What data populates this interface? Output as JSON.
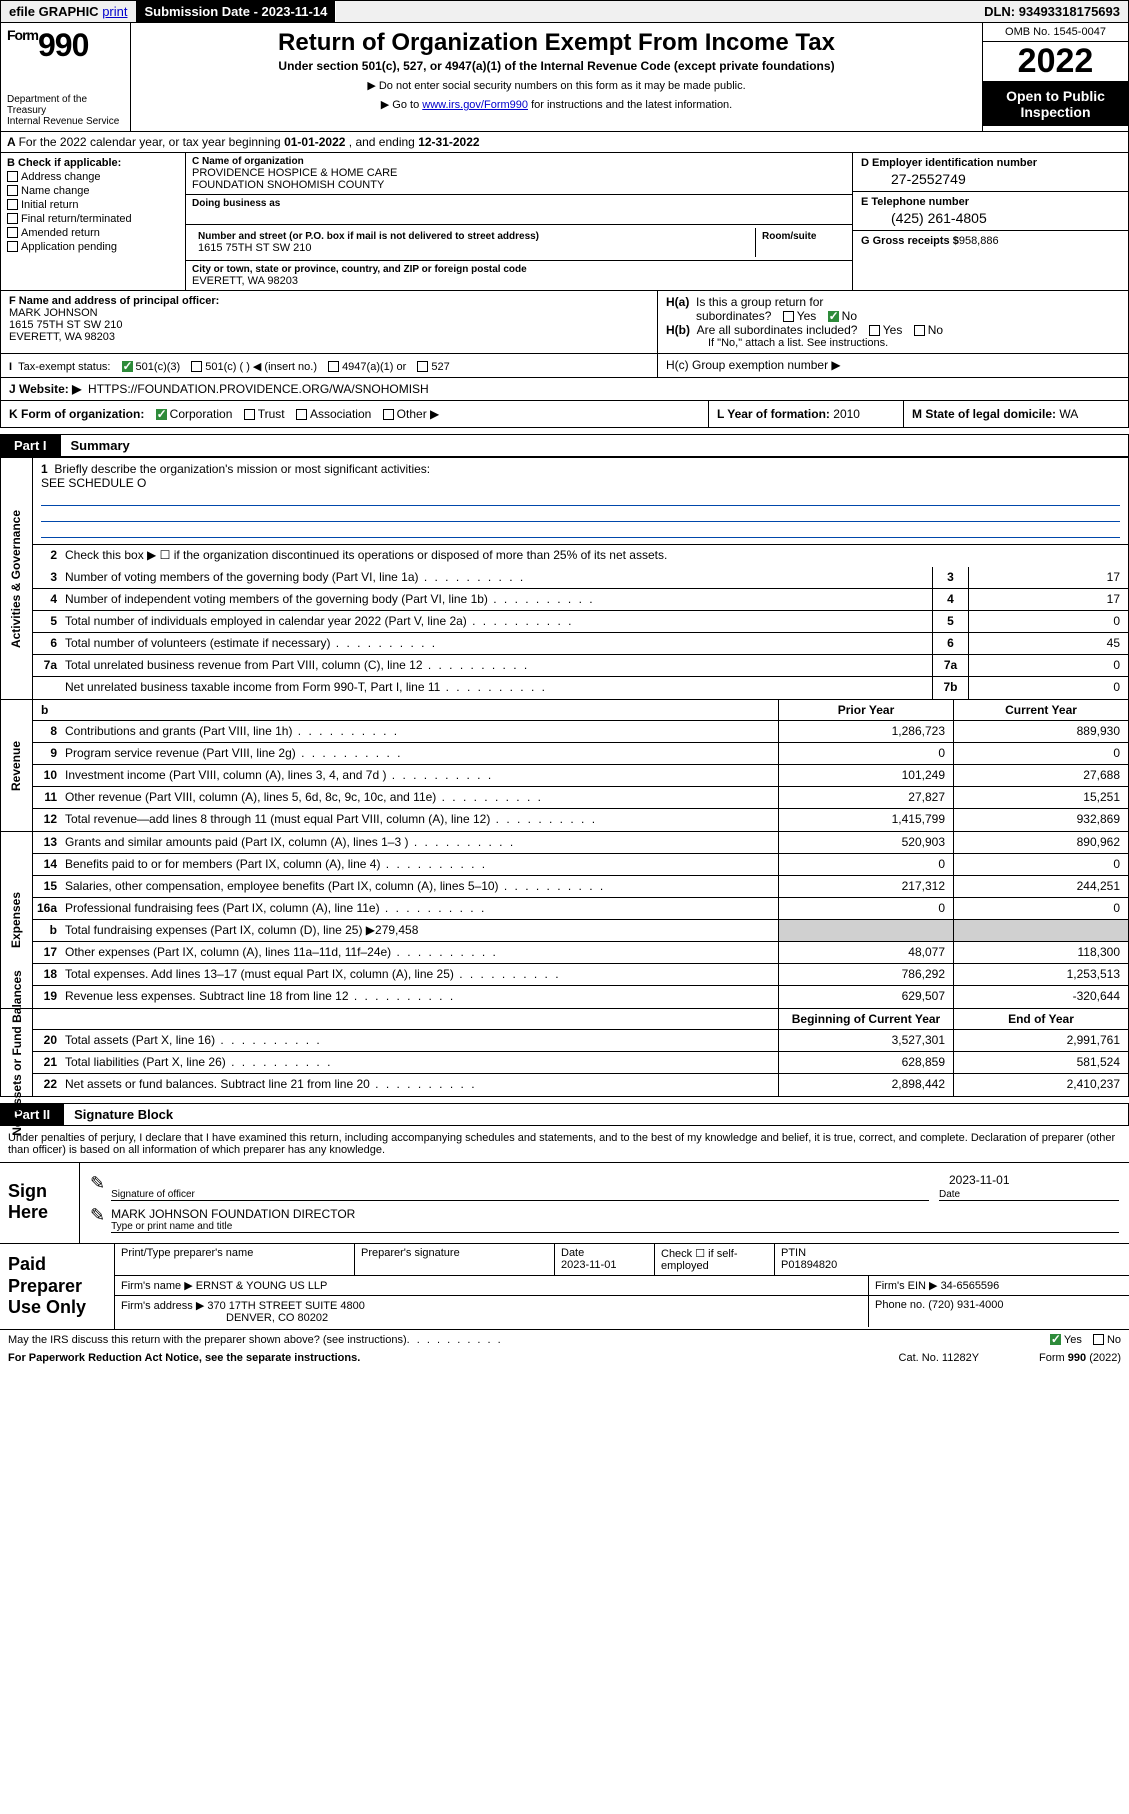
{
  "topbar": {
    "efile": "efile GRAPHIC",
    "print": "print",
    "submission_label": "Submission Date -",
    "submission_date": "2023-11-14",
    "dln_label": "DLN:",
    "dln": "93493318175693"
  },
  "header": {
    "form_label": "Form",
    "form_num": "990",
    "title": "Return of Organization Exempt From Income Tax",
    "subtitle": "Under section 501(c), 527, or 4947(a)(1) of the Internal Revenue Code (except private foundations)",
    "note1": "▶ Do not enter social security numbers on this form as it may be made public.",
    "note2_pre": "▶ Go to ",
    "note2_link": "www.irs.gov/Form990",
    "note2_post": " for instructions and the latest information.",
    "dept": "Department of the Treasury",
    "irs": "Internal Revenue Service",
    "omb": "OMB No. 1545-0047",
    "year": "2022",
    "open": "Open to Public Inspection"
  },
  "period": {
    "text_a": "For the 2022 calendar year, or tax year beginning ",
    "begin": "01-01-2022",
    "mid": " , and ending ",
    "end": "12-31-2022"
  },
  "boxB": {
    "title": "B Check if applicable:",
    "items": [
      "Address change",
      "Name change",
      "Initial return",
      "Final return/terminated",
      "Amended return",
      "Application pending"
    ]
  },
  "boxC": {
    "name_lbl": "C Name of organization",
    "name1": "PROVIDENCE HOSPICE & HOME CARE",
    "name2": "FOUNDATION SNOHOMISH COUNTY",
    "dba_lbl": "Doing business as",
    "addr_lbl": "Number and street (or P.O. box if mail is not delivered to street address)",
    "room_lbl": "Room/suite",
    "addr": "1615 75TH ST SW 210",
    "city_lbl": "City or town, state or province, country, and ZIP or foreign postal code",
    "city": "EVERETT, WA  98203"
  },
  "boxDE": {
    "d_lbl": "D Employer identification number",
    "ein": "27-2552749",
    "e_lbl": "E Telephone number",
    "phone": "(425) 261-4805",
    "g_lbl": "G Gross receipts $",
    "gross": "958,886"
  },
  "boxF": {
    "lbl": "F Name and address of principal officer:",
    "name": "MARK JOHNSON",
    "addr1": "1615 75TH ST SW 210",
    "addr2": "EVERETT, WA  98203"
  },
  "boxH": {
    "ha": "H(a)  Is this a group return for subordinates?",
    "hb": "H(b)  Are all subordinates included?",
    "hb_note": "If \"No,\" attach a list. See instructions.",
    "hc": "H(c)  Group exemption number ▶"
  },
  "boxI": {
    "lbl": "I  Tax-exempt status:",
    "o1": "501(c)(3)",
    "o2": "501(c) (  ) ◀ (insert no.)",
    "o3": "4947(a)(1) or",
    "o4": "527"
  },
  "boxJ": {
    "lbl": "J  Website: ▶",
    "val": "HTTPS://FOUNDATION.PROVIDENCE.ORG/WA/SNOHOMISH"
  },
  "boxK": {
    "lbl": "K Form of organization:",
    "o1": "Corporation",
    "o2": "Trust",
    "o3": "Association",
    "o4": "Other ▶"
  },
  "boxL": {
    "lbl": "L Year of formation:",
    "val": "2010"
  },
  "boxM": {
    "lbl": "M State of legal domicile:",
    "val": "WA"
  },
  "parts": {
    "p1_num": "Part I",
    "p1_title": "Summary",
    "p2_num": "Part II",
    "p2_title": "Signature Block"
  },
  "sections": {
    "s1": "Activities & Governance",
    "s2": "Revenue",
    "s3": "Expenses",
    "s4": "Net Assets or Fund Balances"
  },
  "q1": {
    "num": "1",
    "text": "Briefly describe the organization's mission or most significant activities:",
    "ans": "SEE SCHEDULE O"
  },
  "q2": {
    "num": "2",
    "text": "Check this box ▶ ☐  if the organization discontinued its operations or disposed of more than 25% of its net assets."
  },
  "rows_ag": [
    {
      "n": "3",
      "t": "Number of voting members of the governing body (Part VI, line 1a)",
      "b": "3",
      "v": "17"
    },
    {
      "n": "4",
      "t": "Number of independent voting members of the governing body (Part VI, line 1b)",
      "b": "4",
      "v": "17"
    },
    {
      "n": "5",
      "t": "Total number of individuals employed in calendar year 2022 (Part V, line 2a)",
      "b": "5",
      "v": "0"
    },
    {
      "n": "6",
      "t": "Total number of volunteers (estimate if necessary)",
      "b": "6",
      "v": "45"
    },
    {
      "n": "7a",
      "t": "Total unrelated business revenue from Part VIII, column (C), line 12",
      "b": "7a",
      "v": "0"
    },
    {
      "n": "",
      "t": "Net unrelated business taxable income from Form 990-T, Part I, line 11",
      "b": "7b",
      "v": "0"
    }
  ],
  "fin_hdr": {
    "b": "b",
    "prior": "Prior Year",
    "current": "Current Year",
    "bocy": "Beginning of Current Year",
    "eoy": "End of Year"
  },
  "rows_rev": [
    {
      "n": "8",
      "t": "Contributions and grants (Part VIII, line 1h)",
      "p": "1,286,723",
      "c": "889,930"
    },
    {
      "n": "9",
      "t": "Program service revenue (Part VIII, line 2g)",
      "p": "0",
      "c": "0"
    },
    {
      "n": "10",
      "t": "Investment income (Part VIII, column (A), lines 3, 4, and 7d )",
      "p": "101,249",
      "c": "27,688"
    },
    {
      "n": "11",
      "t": "Other revenue (Part VIII, column (A), lines 5, 6d, 8c, 9c, 10c, and 11e)",
      "p": "27,827",
      "c": "15,251"
    },
    {
      "n": "12",
      "t": "Total revenue—add lines 8 through 11 (must equal Part VIII, column (A), line 12)",
      "p": "1,415,799",
      "c": "932,869"
    }
  ],
  "rows_exp": [
    {
      "n": "13",
      "t": "Grants and similar amounts paid (Part IX, column (A), lines 1–3 )",
      "p": "520,903",
      "c": "890,962"
    },
    {
      "n": "14",
      "t": "Benefits paid to or for members (Part IX, column (A), line 4)",
      "p": "0",
      "c": "0"
    },
    {
      "n": "15",
      "t": "Salaries, other compensation, employee benefits (Part IX, column (A), lines 5–10)",
      "p": "217,312",
      "c": "244,251"
    },
    {
      "n": "16a",
      "t": "Professional fundraising fees (Part IX, column (A), line 11e)",
      "p": "0",
      "c": "0"
    },
    {
      "n": "b",
      "t": "Total fundraising expenses (Part IX, column (D), line 25) ▶279,458",
      "p": "",
      "c": "",
      "grey": true,
      "sub": true
    },
    {
      "n": "17",
      "t": "Other expenses (Part IX, column (A), lines 11a–11d, 11f–24e)",
      "p": "48,077",
      "c": "118,300"
    },
    {
      "n": "18",
      "t": "Total expenses. Add lines 13–17 (must equal Part IX, column (A), line 25)",
      "p": "786,292",
      "c": "1,253,513"
    },
    {
      "n": "19",
      "t": "Revenue less expenses. Subtract line 18 from line 12",
      "p": "629,507",
      "c": "-320,644"
    }
  ],
  "rows_net": [
    {
      "n": "20",
      "t": "Total assets (Part X, line 16)",
      "p": "3,527,301",
      "c": "2,991,761"
    },
    {
      "n": "21",
      "t": "Total liabilities (Part X, line 26)",
      "p": "628,859",
      "c": "581,524"
    },
    {
      "n": "22",
      "t": "Net assets or fund balances. Subtract line 21 from line 20",
      "p": "2,898,442",
      "c": "2,410,237"
    }
  ],
  "penalties": "Under penalties of perjury, I declare that I have examined this return, including accompanying schedules and statements, and to the best of my knowledge and belief, it is true, correct, and complete. Declaration of preparer (other than officer) is based on all information of which preparer has any knowledge.",
  "sign": {
    "here": "Sign Here",
    "sig_lbl": "Signature of officer",
    "date_lbl": "Date",
    "date": "2023-11-01",
    "name": "MARK JOHNSON  FOUNDATION DIRECTOR",
    "name_lbl": "Type or print name and title"
  },
  "preparer": {
    "title": "Paid Preparer Use Only",
    "h1": "Print/Type preparer's name",
    "h2": "Preparer's signature",
    "h3": "Date",
    "date": "2023-11-01",
    "h4": "Check ☐ if self-employed",
    "h5": "PTIN",
    "ptin": "P01894820",
    "firm_name_lbl": "Firm's name    ▶",
    "firm_name": "ERNST & YOUNG US LLP",
    "firm_ein_lbl": "Firm's EIN ▶",
    "firm_ein": "34-6565596",
    "firm_addr_lbl": "Firm's address ▶",
    "firm_addr1": "370 17TH STREET SUITE 4800",
    "firm_addr2": "DENVER, CO  80202",
    "phone_lbl": "Phone no.",
    "phone": "(720) 931-4000"
  },
  "footer": {
    "may": "May the IRS discuss this return with the preparer shown above? (see instructions)",
    "paperwork": "For Paperwork Reduction Act Notice, see the separate instructions.",
    "cat": "Cat. No. 11282Y",
    "form": "Form 990 (2022)"
  }
}
